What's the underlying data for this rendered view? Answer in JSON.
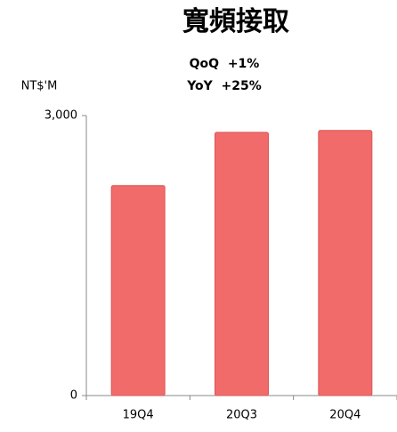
{
  "chart_data": {
    "type": "bar",
    "title": "寬頻接取",
    "subtitle": [
      "QoQ  +1%",
      "YoY  +25%"
    ],
    "y_label": "NT$'M",
    "categories": [
      "19Q4",
      "20Q3",
      "20Q4"
    ],
    "values": [
      2250,
      2820,
      2840
    ],
    "color": "#f26b6b",
    "ylim": [
      0,
      3000
    ],
    "yticks": [
      0,
      {
        "value": 3000,
        "label": "3,000"
      }
    ],
    "grid": false
  }
}
